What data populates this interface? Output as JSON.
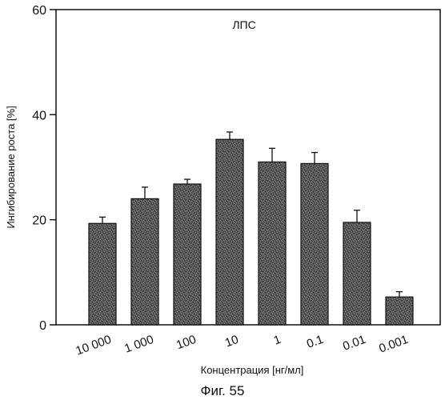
{
  "chart_data": {
    "type": "bar",
    "title": "",
    "annotation": "ЛПС",
    "xlabel": "Концентрация [нг/мл]",
    "ylabel": "Ингибирование роста [%]",
    "ylim": [
      0,
      60
    ],
    "yticks": [
      0,
      20,
      40,
      60
    ],
    "categories": [
      "10 000",
      "1 000",
      "100",
      "10",
      "1",
      "0.1",
      "0.01",
      "0.001"
    ],
    "values": [
      19.3,
      24.0,
      26.8,
      35.3,
      31.0,
      30.7,
      19.5,
      5.3
    ],
    "errors": [
      1.2,
      2.2,
      0.9,
      1.4,
      2.6,
      2.1,
      2.3,
      1.0
    ],
    "grid": false,
    "legend": "none",
    "bar_color": "#555555",
    "caption": "Фиг. 55"
  }
}
